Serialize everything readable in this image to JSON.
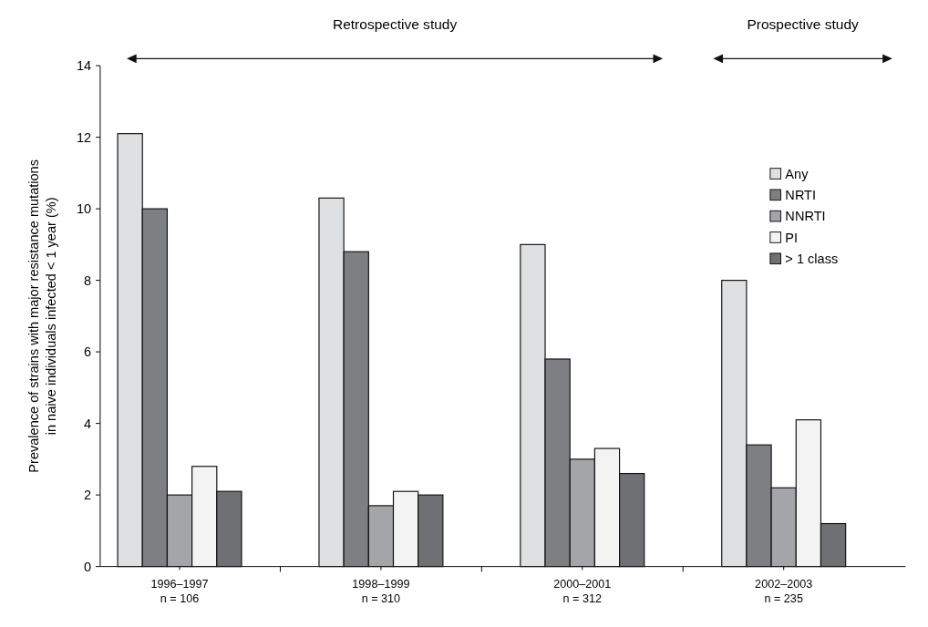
{
  "chart_data": {
    "type": "bar",
    "categories": [
      "1996–1997\nn = 106",
      "1998–1999\nn = 310",
      "2000–2001\nn = 312",
      "2002–2003\nn = 235"
    ],
    "ylabel": "Prevalence of strains with major resistance mutations\nin naive individuals infected < 1 year (%)",
    "ylim": [
      0,
      14
    ],
    "yticks": [
      0,
      2,
      4,
      6,
      8,
      10,
      12,
      14
    ],
    "grid": false,
    "legend": "top right",
    "annotations": [
      "Retrospective study",
      "Prospective study"
    ],
    "series": [
      {
        "name": "Any",
        "color": "#dfe0e2",
        "values": [
          12.1,
          10.3,
          9.0,
          8.0
        ]
      },
      {
        "name": "NRTI",
        "color": "#7e7f83",
        "values": [
          10.0,
          8.8,
          5.8,
          3.4
        ]
      },
      {
        "name": "NNRTI",
        "color": "#a4a5a9",
        "values": [
          2.0,
          1.7,
          3.0,
          2.2
        ]
      },
      {
        "name": "PI",
        "color": "#f3f3f3",
        "values": [
          2.8,
          2.1,
          3.3,
          4.1
        ]
      },
      {
        "name": "> 1 class",
        "color": "#6f7074",
        "values": [
          2.1,
          2.0,
          2.6,
          1.2
        ]
      }
    ]
  }
}
